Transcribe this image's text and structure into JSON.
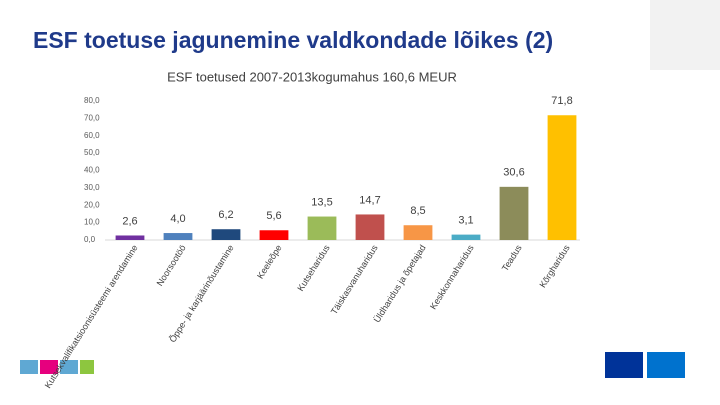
{
  "header": {
    "title": "ESF toetuse jagunemine valdkondade lõikes (2)"
  },
  "chart_data": {
    "type": "bar",
    "title": "ESF toetused 2007-2013kogumahus 160,6 MEUR",
    "categories": [
      "Kutsekvalifikatsioonisüsteemi arendamine",
      "Noorsootöö",
      "Õppe- ja karjäärinõustamine",
      "Keeleõpe",
      "Kutseharidus",
      "Täiskasvanuharidus",
      "Üldharidus ja õpetajad",
      "Keskkonnaharidus",
      "Teadus",
      "Kõrgharidus"
    ],
    "values": [
      2.6,
      4.0,
      6.2,
      5.6,
      13.5,
      14.7,
      8.5,
      3.1,
      30.6,
      71.8
    ],
    "value_labels": [
      "2,6",
      "4,0",
      "6,2",
      "5,6",
      "13,5",
      "14,7",
      "8,5",
      "3,1",
      "30,6",
      "71,8"
    ],
    "colors": [
      "#7030a0",
      "#4f81bd",
      "#1f497d",
      "#ff0000",
      "#9bbb59",
      "#c0504d",
      "#f79646",
      "#4bacc6",
      "#8c8c5a",
      "#ffc000"
    ],
    "ylim": [
      0,
      80
    ],
    "yticks": [
      {
        "value": 0,
        "label": "0,0"
      },
      {
        "value": 10,
        "label": "10,0"
      },
      {
        "value": 20,
        "label": "20,0"
      },
      {
        "value": 30,
        "label": "30,0"
      },
      {
        "value": 40,
        "label": "40,0"
      },
      {
        "value": 50,
        "label": "50,0"
      },
      {
        "value": 60,
        "label": "60,0"
      },
      {
        "value": 70,
        "label": "70,0"
      },
      {
        "value": 80,
        "label": "80,0"
      }
    ],
    "grid": false
  }
}
